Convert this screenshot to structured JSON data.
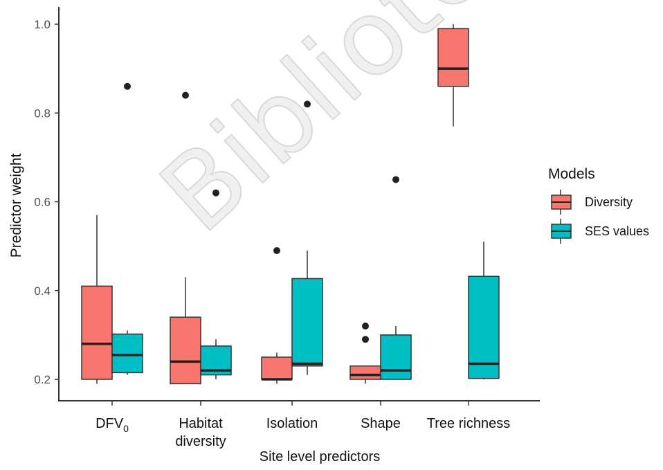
{
  "chart_data": {
    "type": "boxplot",
    "xlabel": "Site level predictors",
    "ylabel": "Predictor weight",
    "ylim": [
      0.17,
      1.03
    ],
    "yticks": [
      "0.2",
      "0.4",
      "0.6",
      "0.8",
      "1.0"
    ],
    "grid": false,
    "legend_position": "right",
    "legend": {
      "title": "Models",
      "items": [
        {
          "label": "Diversity",
          "color": "#F8766D"
        },
        {
          "label": "SES values",
          "color": "#00BFC4"
        }
      ]
    },
    "categories": [
      {
        "lines": [
          "DFV",
          "0"
        ],
        "subscript": true
      },
      {
        "lines": [
          "Habitat",
          "diversity"
        ]
      },
      {
        "lines": [
          "Isolation"
        ]
      },
      {
        "lines": [
          "Shape"
        ]
      },
      {
        "lines": [
          "Tree richness"
        ]
      }
    ],
    "series": [
      {
        "name": "Diversity",
        "color": "#F8766D",
        "boxes": [
          {
            "min": 0.19,
            "q1": 0.2,
            "median": 0.28,
            "q3": 0.41,
            "max": 0.57,
            "outliers": []
          },
          {
            "min": 0.19,
            "q1": 0.19,
            "median": 0.24,
            "q3": 0.34,
            "max": 0.43,
            "outliers": [
              0.84
            ]
          },
          {
            "min": 0.19,
            "q1": 0.2,
            "median": 0.2,
            "q3": 0.25,
            "max": 0.26,
            "outliers": [
              0.49
            ]
          },
          {
            "min": 0.19,
            "q1": 0.2,
            "median": 0.21,
            "q3": 0.23,
            "max": 0.23,
            "outliers": [
              0.32,
              0.29
            ]
          },
          {
            "min": 0.77,
            "q1": 0.86,
            "median": 0.9,
            "q3": 0.99,
            "max": 1.0,
            "outliers": []
          }
        ]
      },
      {
        "name": "SES values",
        "color": "#00BFC4",
        "boxes": [
          {
            "min": 0.21,
            "q1": 0.215,
            "median": 0.255,
            "q3": 0.302,
            "max": 0.31,
            "outliers": [
              0.86
            ]
          },
          {
            "min": 0.2,
            "q1": 0.21,
            "median": 0.22,
            "q3": 0.275,
            "max": 0.29,
            "outliers": [
              0.62
            ]
          },
          {
            "min": 0.21,
            "q1": 0.23,
            "median": 0.235,
            "q3": 0.427,
            "max": 0.49,
            "outliers": [
              0.82
            ]
          },
          {
            "min": 0.2,
            "q1": 0.2,
            "median": 0.22,
            "q3": 0.3,
            "max": 0.32,
            "outliers": [
              0.65
            ]
          },
          {
            "min": 0.2,
            "q1": 0.202,
            "median": 0.235,
            "q3": 0.432,
            "max": 0.51,
            "outliers": []
          }
        ]
      }
    ]
  },
  "watermark": "Bibliotecas de la U"
}
